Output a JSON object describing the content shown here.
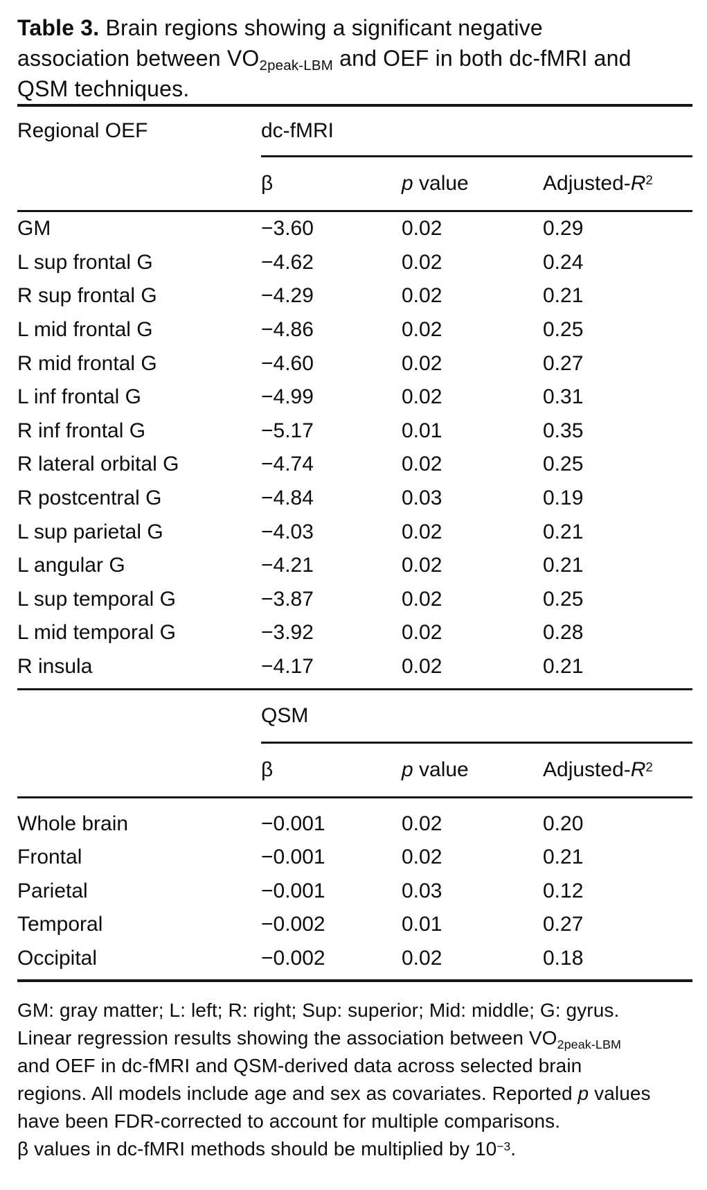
{
  "title": {
    "parts": [
      {
        "t": "Table 3.",
        "s": "b"
      },
      {
        "t": "  Brain regions showing a significant negative"
      },
      {
        "br": true
      },
      {
        "t": "association between VO"
      },
      {
        "t": "2peak-LBM",
        "s": "sub"
      },
      {
        "t": " and OEF in both dc-fMRI and"
      },
      {
        "br": true
      },
      {
        "t": "QSM techniques."
      }
    ]
  },
  "table": {
    "region_header": "Regional OEF",
    "columns": [
      {
        "name": "beta",
        "parts": [
          {
            "t": "β"
          }
        ]
      },
      {
        "name": "p-value",
        "parts": [
          {
            "t": "p",
            "s": "i"
          },
          {
            "t": " value"
          }
        ]
      },
      {
        "name": "adjusted-r2",
        "parts": [
          {
            "t": "Adjusted-"
          },
          {
            "t": "R",
            "s": "i"
          },
          {
            "t": "2",
            "s": "sup"
          }
        ]
      }
    ],
    "sections": [
      {
        "group_header": "dc-fMRI",
        "rows": [
          {
            "region": "GM",
            "beta": "−3.60",
            "p": "0.02",
            "r2": "0.29"
          },
          {
            "region": "L sup frontal G",
            "beta": "−4.62",
            "p": "0.02",
            "r2": "0.24"
          },
          {
            "region": "R sup frontal G",
            "beta": "−4.29",
            "p": "0.02",
            "r2": "0.21"
          },
          {
            "region": "L mid frontal G",
            "beta": "−4.86",
            "p": "0.02",
            "r2": "0.25"
          },
          {
            "region": "R mid frontal G",
            "beta": "−4.60",
            "p": "0.02",
            "r2": "0.27"
          },
          {
            "region": "L inf frontal G",
            "beta": "−4.99",
            "p": "0.02",
            "r2": "0.31"
          },
          {
            "region": "R inf frontal G",
            "beta": "−5.17",
            "p": "0.01",
            "r2": "0.35"
          },
          {
            "region": "R lateral orbital G",
            "beta": "−4.74",
            "p": "0.02",
            "r2": "0.25"
          },
          {
            "region": "R postcentral G",
            "beta": "−4.84",
            "p": "0.03",
            "r2": "0.19"
          },
          {
            "region": "L sup parietal G",
            "beta": "−4.03",
            "p": "0.02",
            "r2": "0.21"
          },
          {
            "region": "L angular G",
            "beta": "−4.21",
            "p": "0.02",
            "r2": "0.21"
          },
          {
            "region": "L sup temporal G",
            "beta": "−3.87",
            "p": "0.02",
            "r2": "0.25"
          },
          {
            "region": "L mid temporal G",
            "beta": "−3.92",
            "p": "0.02",
            "r2": "0.28"
          },
          {
            "region": "R insula",
            "beta": "−4.17",
            "p": "0.02",
            "r2": "0.21"
          }
        ]
      },
      {
        "group_header": "QSM",
        "rows": [
          {
            "region": "Whole brain",
            "beta": "−0.001",
            "p": "0.02",
            "r2": "0.20"
          },
          {
            "region": "Frontal",
            "beta": "−0.001",
            "p": "0.02",
            "r2": "0.21"
          },
          {
            "region": "Parietal",
            "beta": "−0.001",
            "p": "0.03",
            "r2": "0.12"
          },
          {
            "region": "Temporal",
            "beta": "−0.002",
            "p": "0.01",
            "r2": "0.27"
          },
          {
            "region": "Occipital",
            "beta": "−0.002",
            "p": "0.02",
            "r2": "0.18"
          }
        ]
      }
    ]
  },
  "footnote": {
    "parts": [
      {
        "t": "GM: gray matter; L: left; R: right; Sup: superior; Mid: middle; G: gyrus."
      },
      {
        "br": true
      },
      {
        "t": "Linear regression results showing the association between VO"
      },
      {
        "t": "2peak-LBM",
        "s": "sub"
      },
      {
        "br": true
      },
      {
        "t": "and OEF in dc-fMRI and QSM-derived data across selected brain"
      },
      {
        "br": true
      },
      {
        "t": "regions. All models include age and sex as covariates. Reported "
      },
      {
        "t": "p",
        "s": "i"
      },
      {
        "t": " values"
      },
      {
        "br": true
      },
      {
        "t": "have been FDR-corrected to account for multiple comparisons."
      },
      {
        "br": true
      },
      {
        "t": "β values in dc-fMRI methods should be multiplied by 10"
      },
      {
        "t": "−3",
        "s": "sup"
      },
      {
        "t": "."
      }
    ]
  }
}
